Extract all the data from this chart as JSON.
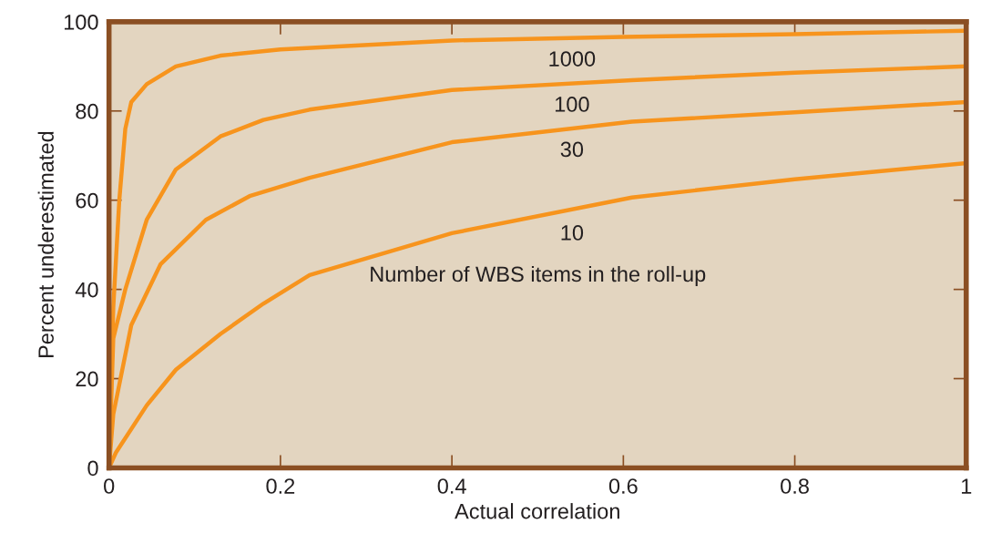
{
  "chart_data": {
    "type": "line",
    "xlabel": "Actual correlation",
    "ylabel": "Percent underestimated",
    "xlim": [
      0,
      1
    ],
    "ylim": [
      0,
      100
    ],
    "xticks": [
      0,
      0.2,
      0.4,
      0.6,
      0.8,
      1
    ],
    "yticks": [
      0,
      20,
      40,
      60,
      80,
      100
    ],
    "grid": false,
    "legend": false,
    "marker": "none",
    "line_style": "solid",
    "annotations": [
      "Number of WBS items in the roll-up"
    ],
    "series": [
      {
        "name": "1000",
        "color": "#f7941d",
        "x": [
          0,
          0.005,
          0.012,
          0.019,
          0.026,
          0.044,
          0.078,
          0.13,
          0.2,
          0.4,
          0.6,
          0.8,
          1
        ],
        "values": [
          0,
          36,
          60,
          76,
          82,
          86,
          90,
          92.4,
          93.8,
          95.8,
          96.6,
          97.2,
          98
        ]
      },
      {
        "name": "100",
        "color": "#f7941d",
        "x": [
          0,
          0.005,
          0.019,
          0.044,
          0.078,
          0.13,
          0.18,
          0.234,
          0.4,
          0.61,
          0.8,
          1
        ],
        "values": [
          0,
          29,
          40,
          55.6,
          66.9,
          74.3,
          78,
          80.3,
          84.7,
          86.9,
          88.6,
          90
        ]
      },
      {
        "name": "30",
        "color": "#f7941d",
        "x": [
          0,
          0.005,
          0.026,
          0.06,
          0.113,
          0.165,
          0.234,
          0.4,
          0.61,
          0.8,
          1
        ],
        "values": [
          0,
          12,
          32,
          45.6,
          55.6,
          61,
          65,
          73,
          77.6,
          79.7,
          82
        ]
      },
      {
        "name": "10",
        "color": "#f7941d",
        "x": [
          0,
          0.008,
          0.044,
          0.078,
          0.13,
          0.18,
          0.234,
          0.4,
          0.61,
          0.8,
          1
        ],
        "values": [
          0,
          3.4,
          14,
          22,
          30,
          36.8,
          43.2,
          52.6,
          60.6,
          64.7,
          68.3
        ]
      }
    ]
  }
}
